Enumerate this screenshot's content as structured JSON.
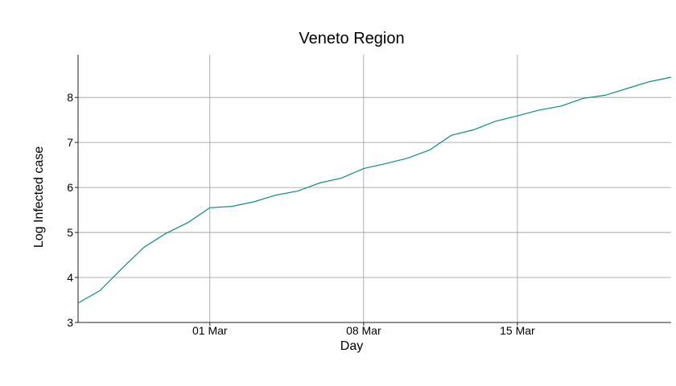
{
  "chart_data": {
    "type": "line",
    "title": "Veneto Region",
    "xlabel": "Day",
    "ylabel": "Log Infected case",
    "x_ticks": [
      {
        "day": 6,
        "label": "01 Mar"
      },
      {
        "day": 13,
        "label": "08 Mar"
      },
      {
        "day": 20,
        "label": "15 Mar"
      }
    ],
    "y_ticks": [
      3,
      4,
      5,
      6,
      7,
      8
    ],
    "xlim": [
      0,
      27
    ],
    "ylim": [
      3,
      8.95
    ],
    "grid": true,
    "series": [
      {
        "color": "#0e8c83",
        "x_day_offset_from": "24 Feb",
        "values": [
          3.43,
          3.71,
          4.2,
          4.67,
          4.98,
          5.22,
          5.55,
          5.58,
          5.68,
          5.83,
          5.92,
          6.1,
          6.21,
          6.42,
          6.53,
          6.65,
          6.83,
          7.16,
          7.28,
          7.47,
          7.59,
          7.72,
          7.81,
          7.98,
          8.05,
          8.2,
          8.35,
          8.45
        ]
      }
    ]
  }
}
